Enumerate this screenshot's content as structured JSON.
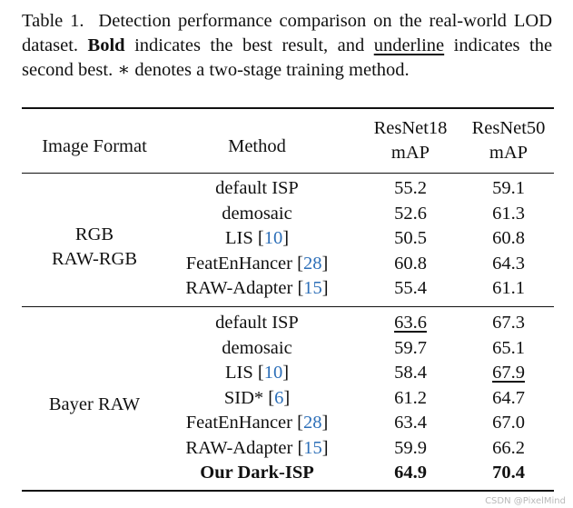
{
  "caption": {
    "label": "Table 1.",
    "text1": "Detection performance comparison on the real-world LOD dataset.",
    "bold_word": "Bold",
    "text2": "indicates the best result, and",
    "underline_word": "underline",
    "text3": "indicates the second best. ∗ denotes a two-stage training method."
  },
  "header": {
    "image_format": "Image Format",
    "method": "Method",
    "resnet18": "ResNet18",
    "resnet50": "ResNet50",
    "metric": "mAP"
  },
  "groups": [
    {
      "format_lines": [
        "RGB",
        "RAW-RGB"
      ],
      "rows": [
        {
          "method": "default ISP",
          "cite": "",
          "r18": "55.2",
          "r50": "59.1"
        },
        {
          "method": "demosaic",
          "cite": "",
          "r18": "52.6",
          "r50": "61.3"
        },
        {
          "method": "LIS",
          "cite": "10",
          "r18": "50.5",
          "r50": "60.8"
        },
        {
          "method": "FeatEnHancer",
          "cite": "28",
          "r18": "60.8",
          "r50": "64.3"
        },
        {
          "method": "RAW-Adapter",
          "cite": "15",
          "r18": "55.4",
          "r50": "61.1"
        }
      ]
    },
    {
      "format_lines": [
        "Bayer RAW"
      ],
      "rows": [
        {
          "method": "default ISP",
          "cite": "",
          "r18": "63.6",
          "r50": "67.3"
        },
        {
          "method": "demosaic",
          "cite": "",
          "r18": "59.7",
          "r50": "65.1"
        },
        {
          "method": "LIS",
          "cite": "10",
          "r18": "58.4",
          "r50": "67.9"
        },
        {
          "method": "SID*",
          "cite": "6",
          "r18": "61.2",
          "r50": "64.7"
        },
        {
          "method": "FeatEnHancer",
          "cite": "28",
          "r18": "63.4",
          "r50": "67.0"
        },
        {
          "method": "RAW-Adapter",
          "cite": "15",
          "r18": "59.9",
          "r50": "66.2"
        },
        {
          "method": "Our Dark-ISP",
          "cite": "",
          "r18": "64.9",
          "r50": "70.4"
        }
      ]
    }
  ],
  "watermark": "CSDN @PixelMind"
}
